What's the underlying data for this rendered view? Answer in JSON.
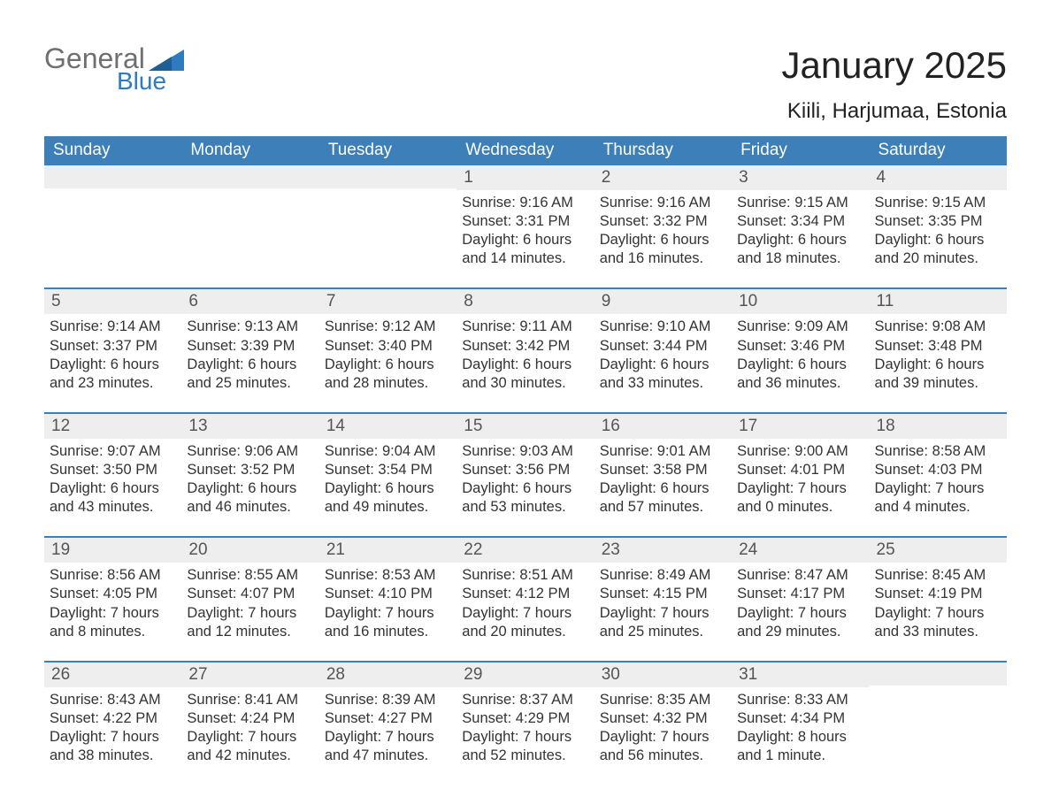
{
  "brand": {
    "word1": "General",
    "word2": "Blue"
  },
  "colors": {
    "brand_gray": "#6f6f6f",
    "brand_blue": "#2f7bbf",
    "header_bg": "#3c7fb9",
    "header_text": "#ffffff",
    "daynum_bg": "#eeeeee",
    "daynum_text": "#555555",
    "body_text": "#333333",
    "page_bg": "#ffffff",
    "week_rule": "#3c7fb9"
  },
  "typography": {
    "logo_fontsize": 32,
    "month_fontsize": 42,
    "location_fontsize": 24,
    "weekday_fontsize": 19,
    "daynum_fontsize": 19,
    "body_fontsize": 16.5
  },
  "title": "January 2025",
  "location": "Kiili, Harjumaa, Estonia",
  "weekdays": [
    "Sunday",
    "Monday",
    "Tuesday",
    "Wednesday",
    "Thursday",
    "Friday",
    "Saturday"
  ],
  "weeks": [
    [
      {
        "n": "",
        "sunrise": "",
        "sunset": "",
        "daylight": ""
      },
      {
        "n": "",
        "sunrise": "",
        "sunset": "",
        "daylight": ""
      },
      {
        "n": "",
        "sunrise": "",
        "sunset": "",
        "daylight": ""
      },
      {
        "n": "1",
        "sunrise": "Sunrise: 9:16 AM",
        "sunset": "Sunset: 3:31 PM",
        "daylight": "Daylight: 6 hours and 14 minutes."
      },
      {
        "n": "2",
        "sunrise": "Sunrise: 9:16 AM",
        "sunset": "Sunset: 3:32 PM",
        "daylight": "Daylight: 6 hours and 16 minutes."
      },
      {
        "n": "3",
        "sunrise": "Sunrise: 9:15 AM",
        "sunset": "Sunset: 3:34 PM",
        "daylight": "Daylight: 6 hours and 18 minutes."
      },
      {
        "n": "4",
        "sunrise": "Sunrise: 9:15 AM",
        "sunset": "Sunset: 3:35 PM",
        "daylight": "Daylight: 6 hours and 20 minutes."
      }
    ],
    [
      {
        "n": "5",
        "sunrise": "Sunrise: 9:14 AM",
        "sunset": "Sunset: 3:37 PM",
        "daylight": "Daylight: 6 hours and 23 minutes."
      },
      {
        "n": "6",
        "sunrise": "Sunrise: 9:13 AM",
        "sunset": "Sunset: 3:39 PM",
        "daylight": "Daylight: 6 hours and 25 minutes."
      },
      {
        "n": "7",
        "sunrise": "Sunrise: 9:12 AM",
        "sunset": "Sunset: 3:40 PM",
        "daylight": "Daylight: 6 hours and 28 minutes."
      },
      {
        "n": "8",
        "sunrise": "Sunrise: 9:11 AM",
        "sunset": "Sunset: 3:42 PM",
        "daylight": "Daylight: 6 hours and 30 minutes."
      },
      {
        "n": "9",
        "sunrise": "Sunrise: 9:10 AM",
        "sunset": "Sunset: 3:44 PM",
        "daylight": "Daylight: 6 hours and 33 minutes."
      },
      {
        "n": "10",
        "sunrise": "Sunrise: 9:09 AM",
        "sunset": "Sunset: 3:46 PM",
        "daylight": "Daylight: 6 hours and 36 minutes."
      },
      {
        "n": "11",
        "sunrise": "Sunrise: 9:08 AM",
        "sunset": "Sunset: 3:48 PM",
        "daylight": "Daylight: 6 hours and 39 minutes."
      }
    ],
    [
      {
        "n": "12",
        "sunrise": "Sunrise: 9:07 AM",
        "sunset": "Sunset: 3:50 PM",
        "daylight": "Daylight: 6 hours and 43 minutes."
      },
      {
        "n": "13",
        "sunrise": "Sunrise: 9:06 AM",
        "sunset": "Sunset: 3:52 PM",
        "daylight": "Daylight: 6 hours and 46 minutes."
      },
      {
        "n": "14",
        "sunrise": "Sunrise: 9:04 AM",
        "sunset": "Sunset: 3:54 PM",
        "daylight": "Daylight: 6 hours and 49 minutes."
      },
      {
        "n": "15",
        "sunrise": "Sunrise: 9:03 AM",
        "sunset": "Sunset: 3:56 PM",
        "daylight": "Daylight: 6 hours and 53 minutes."
      },
      {
        "n": "16",
        "sunrise": "Sunrise: 9:01 AM",
        "sunset": "Sunset: 3:58 PM",
        "daylight": "Daylight: 6 hours and 57 minutes."
      },
      {
        "n": "17",
        "sunrise": "Sunrise: 9:00 AM",
        "sunset": "Sunset: 4:01 PM",
        "daylight": "Daylight: 7 hours and 0 minutes."
      },
      {
        "n": "18",
        "sunrise": "Sunrise: 8:58 AM",
        "sunset": "Sunset: 4:03 PM",
        "daylight": "Daylight: 7 hours and 4 minutes."
      }
    ],
    [
      {
        "n": "19",
        "sunrise": "Sunrise: 8:56 AM",
        "sunset": "Sunset: 4:05 PM",
        "daylight": "Daylight: 7 hours and 8 minutes."
      },
      {
        "n": "20",
        "sunrise": "Sunrise: 8:55 AM",
        "sunset": "Sunset: 4:07 PM",
        "daylight": "Daylight: 7 hours and 12 minutes."
      },
      {
        "n": "21",
        "sunrise": "Sunrise: 8:53 AM",
        "sunset": "Sunset: 4:10 PM",
        "daylight": "Daylight: 7 hours and 16 minutes."
      },
      {
        "n": "22",
        "sunrise": "Sunrise: 8:51 AM",
        "sunset": "Sunset: 4:12 PM",
        "daylight": "Daylight: 7 hours and 20 minutes."
      },
      {
        "n": "23",
        "sunrise": "Sunrise: 8:49 AM",
        "sunset": "Sunset: 4:15 PM",
        "daylight": "Daylight: 7 hours and 25 minutes."
      },
      {
        "n": "24",
        "sunrise": "Sunrise: 8:47 AM",
        "sunset": "Sunset: 4:17 PM",
        "daylight": "Daylight: 7 hours and 29 minutes."
      },
      {
        "n": "25",
        "sunrise": "Sunrise: 8:45 AM",
        "sunset": "Sunset: 4:19 PM",
        "daylight": "Daylight: 7 hours and 33 minutes."
      }
    ],
    [
      {
        "n": "26",
        "sunrise": "Sunrise: 8:43 AM",
        "sunset": "Sunset: 4:22 PM",
        "daylight": "Daylight: 7 hours and 38 minutes."
      },
      {
        "n": "27",
        "sunrise": "Sunrise: 8:41 AM",
        "sunset": "Sunset: 4:24 PM",
        "daylight": "Daylight: 7 hours and 42 minutes."
      },
      {
        "n": "28",
        "sunrise": "Sunrise: 8:39 AM",
        "sunset": "Sunset: 4:27 PM",
        "daylight": "Daylight: 7 hours and 47 minutes."
      },
      {
        "n": "29",
        "sunrise": "Sunrise: 8:37 AM",
        "sunset": "Sunset: 4:29 PM",
        "daylight": "Daylight: 7 hours and 52 minutes."
      },
      {
        "n": "30",
        "sunrise": "Sunrise: 8:35 AM",
        "sunset": "Sunset: 4:32 PM",
        "daylight": "Daylight: 7 hours and 56 minutes."
      },
      {
        "n": "31",
        "sunrise": "Sunrise: 8:33 AM",
        "sunset": "Sunset: 4:34 PM",
        "daylight": "Daylight: 8 hours and 1 minute."
      },
      {
        "n": "",
        "sunrise": "",
        "sunset": "",
        "daylight": ""
      }
    ]
  ]
}
